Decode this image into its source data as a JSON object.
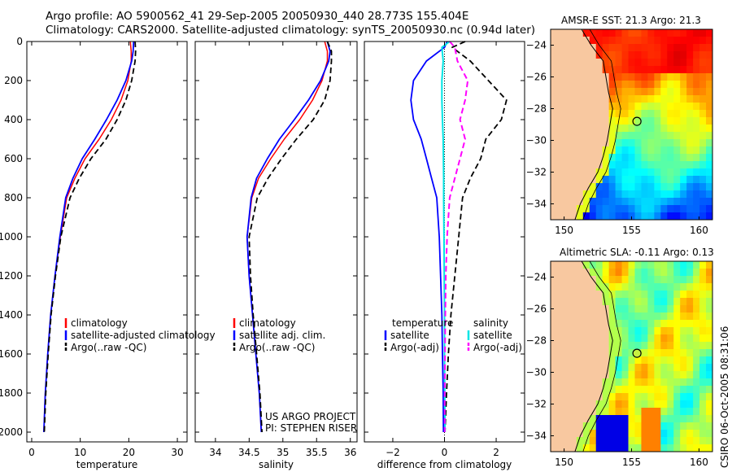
{
  "header": {
    "line1": "Argo profile: AO 5900562_41 29-Sep-2005 20050930_440 28.773S 155.404E",
    "line2": "Climatology: CARS2000. Satellite-adjusted climatology: synTS_20050930.nc (0.94d later)"
  },
  "credit": "CSIRO 06-Oct-2005 08:31:06",
  "colors": {
    "clim": "#ff0000",
    "sat": "#0000ff",
    "argo": "#000000",
    "sat_sal": "#00e5e5",
    "argo_sal": "#ff00ff",
    "land": "#f8c8a0"
  },
  "chart_data": [
    {
      "type": "line",
      "id": "temperature",
      "xlabel": "temperature",
      "ylabel": "",
      "xlim": [
        -1,
        32
      ],
      "ylim": [
        2050,
        0
      ],
      "y_reversed": true,
      "xticks": [
        0,
        10,
        20,
        30
      ],
      "yticks": [
        0,
        200,
        400,
        600,
        800,
        1000,
        1200,
        1400,
        1600,
        1800,
        2000
      ],
      "ytick_labels": [
        "0",
        "200",
        "400",
        "600",
        "800",
        "1000",
        "1200",
        "1400",
        "1600",
        "1800",
        "2000"
      ],
      "legend": [
        "climatology",
        "satellite-adjusted climatology",
        "Argo(..raw -QC)"
      ],
      "legend_position": "lower-right",
      "series": [
        {
          "name": "climatology",
          "style": "clim",
          "x": [
            20.3,
            20.5,
            20.5,
            19.8,
            18.4,
            16.4,
            13.9,
            11.0,
            8.9,
            7.2,
            5.9,
            4.8,
            3.9,
            3.3,
            2.8,
            2.5
          ],
          "y": [
            0,
            50,
            100,
            200,
            300,
            400,
            500,
            600,
            700,
            800,
            1000,
            1200,
            1400,
            1600,
            1800,
            2000
          ]
        },
        {
          "name": "satellite",
          "style": "sat",
          "x": [
            21.0,
            20.9,
            20.6,
            19.4,
            17.6,
            15.4,
            13.0,
            10.4,
            8.5,
            7.0,
            5.8,
            4.8,
            3.9,
            3.3,
            2.8,
            2.5
          ],
          "y": [
            0,
            50,
            100,
            200,
            300,
            400,
            500,
            600,
            700,
            800,
            1000,
            1200,
            1400,
            1600,
            1800,
            2000
          ]
        },
        {
          "name": "argo",
          "style": "argo",
          "x": [
            21.3,
            21.4,
            21.3,
            20.6,
            19.4,
            17.6,
            15.3,
            12.2,
            9.8,
            7.9,
            6.0,
            4.9,
            4.0,
            3.4,
            2.9,
            2.6
          ],
          "y": [
            0,
            50,
            100,
            200,
            300,
            400,
            500,
            600,
            700,
            800,
            1000,
            1200,
            1400,
            1600,
            1800,
            2000
          ]
        }
      ]
    },
    {
      "type": "line",
      "id": "salinity",
      "xlabel": "salinity",
      "ylabel": "",
      "xlim": [
        33.7,
        36.1
      ],
      "ylim": [
        2050,
        0
      ],
      "y_reversed": true,
      "xticks": [
        34,
        34.5,
        35,
        35.5,
        36
      ],
      "xtick_labels": [
        "34",
        "34.5",
        "35",
        "35.5",
        "36"
      ],
      "legend": [
        "climatology",
        "satellite adj. clim.",
        "Argo(..raw -QC)"
      ],
      "legend_position": "lower-right",
      "annotation": [
        "US ARGO PROJECT",
        "PI: STEPHEN RISER"
      ],
      "series": [
        {
          "name": "climatology",
          "style": "clim",
          "x": [
            35.62,
            35.66,
            35.66,
            35.58,
            35.44,
            35.25,
            35.02,
            34.82,
            34.64,
            34.54,
            34.47,
            34.5,
            34.55,
            34.6,
            34.65,
            34.68
          ],
          "y": [
            0,
            50,
            100,
            200,
            300,
            400,
            500,
            600,
            700,
            800,
            1000,
            1200,
            1400,
            1600,
            1800,
            2000
          ]
        },
        {
          "name": "satellite",
          "style": "sat",
          "x": [
            35.66,
            35.7,
            35.68,
            35.56,
            35.38,
            35.17,
            34.95,
            34.77,
            34.61,
            34.53,
            34.47,
            34.5,
            34.55,
            34.6,
            34.65,
            34.68
          ],
          "y": [
            0,
            50,
            100,
            200,
            300,
            400,
            500,
            600,
            700,
            800,
            1000,
            1200,
            1400,
            1600,
            1800,
            2000
          ]
        },
        {
          "name": "argo",
          "style": "argo",
          "x": [
            35.66,
            35.72,
            35.72,
            35.7,
            35.62,
            35.45,
            35.2,
            34.98,
            34.78,
            34.62,
            34.5,
            34.52,
            34.56,
            34.61,
            34.66,
            34.69
          ],
          "y": [
            0,
            50,
            100,
            200,
            300,
            400,
            500,
            600,
            700,
            800,
            1000,
            1200,
            1400,
            1600,
            1800,
            2000
          ]
        }
      ]
    },
    {
      "type": "line",
      "id": "difference",
      "xlabel": "difference from climatology",
      "ylabel": "",
      "xlim": [
        -3.1,
        3.1
      ],
      "ylim": [
        2050,
        0
      ],
      "y_reversed": true,
      "xticks": [
        -2,
        0,
        2
      ],
      "legend_groups": [
        {
          "title": "temperature",
          "items": [
            "satellite",
            "Argo(-adj)"
          ]
        },
        {
          "title": "salinity",
          "items": [
            "satellite",
            "Argo(-adj)"
          ]
        }
      ],
      "legend_position": "lower-center",
      "series": [
        {
          "name": "temperature satellite",
          "style": "sat",
          "x": [
            0.1,
            0.0,
            -0.7,
            -1.2,
            -1.3,
            -1.2,
            -0.9,
            -0.7,
            -0.5,
            -0.3,
            -0.2,
            -0.15,
            -0.1,
            -0.08,
            -0.05,
            -0.04
          ],
          "y": [
            0,
            30,
            100,
            200,
            300,
            400,
            500,
            600,
            700,
            800,
            1000,
            1200,
            1400,
            1600,
            1800,
            2000
          ]
        },
        {
          "name": "temperature Argo(-adj)",
          "style": "argo",
          "x": [
            0.8,
            0.3,
            1.0,
            1.7,
            2.4,
            2.2,
            1.6,
            1.4,
            1.0,
            0.7,
            0.55,
            0.4,
            0.25,
            0.15,
            0.08,
            0.02
          ],
          "y": [
            0,
            30,
            100,
            200,
            300,
            400,
            500,
            600,
            700,
            800,
            1000,
            1200,
            1400,
            1600,
            1800,
            2000
          ]
        },
        {
          "name": "salinity satellite",
          "style": "sat_sal",
          "x": [
            0.2,
            -0.1,
            -0.05,
            -0.1,
            -0.1,
            -0.08,
            -0.05,
            -0.04,
            -0.03,
            -0.03,
            -0.02,
            -0.01,
            0.0,
            0.0,
            0.01,
            0.02
          ],
          "y": [
            0,
            30,
            100,
            200,
            300,
            400,
            500,
            600,
            700,
            800,
            1000,
            1200,
            1400,
            1600,
            1800,
            2000
          ]
        },
        {
          "name": "salinity Argo(-adj)",
          "style": "argo_sal",
          "x": [
            0.2,
            0.4,
            0.5,
            0.9,
            0.8,
            0.6,
            0.8,
            0.6,
            0.4,
            0.2,
            0.1,
            0.05,
            0.03,
            0.02,
            0.01,
            0.01
          ],
          "y": [
            0,
            30,
            100,
            200,
            300,
            400,
            500,
            600,
            700,
            800,
            1000,
            1200,
            1400,
            1600,
            1800,
            2000
          ]
        }
      ]
    },
    {
      "type": "heatmap",
      "id": "sst_map",
      "title": "AMSR-E SST: 21.3 Argo: 21.3",
      "xlim": [
        149,
        161
      ],
      "ylim": [
        -35,
        -23
      ],
      "xticks": [
        150,
        155,
        160
      ],
      "yticks": [
        -24,
        -26,
        -28,
        -30,
        -32,
        -34
      ],
      "argo_marker": {
        "lon": 155.4,
        "lat": -28.8
      },
      "colormap": "jet-like",
      "value_range": [
        18,
        26
      ]
    },
    {
      "type": "heatmap",
      "id": "sla_map",
      "title": "Altimetric SLA: -0.11 Argo: 0.13",
      "xlim": [
        149,
        161
      ],
      "ylim": [
        -35,
        -23
      ],
      "xticks": [
        150,
        155,
        160
      ],
      "yticks": [
        -24,
        -26,
        -28,
        -30,
        -32,
        -34
      ],
      "argo_marker": {
        "lon": 155.4,
        "lat": -28.8
      },
      "colormap": "jet-like",
      "value_range": [
        -0.4,
        0.4
      ]
    }
  ]
}
